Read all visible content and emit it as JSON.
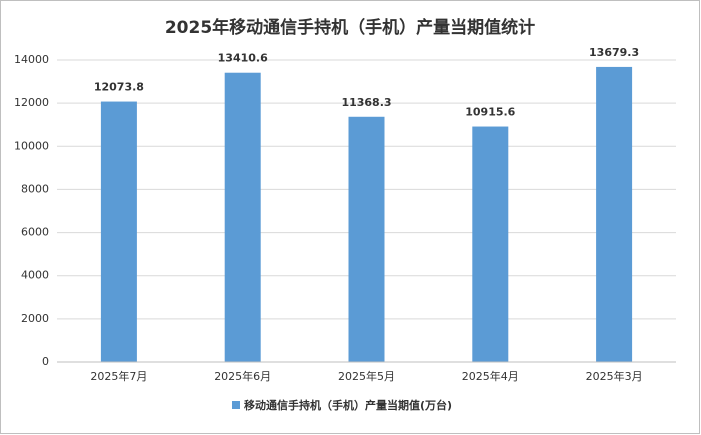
{
  "chart_data": {
    "type": "bar",
    "title": "2025年移动通信手持机（手机）产量当期值统计",
    "categories": [
      "2025年7月",
      "2025年6月",
      "2025年5月",
      "2025年4月",
      "2025年3月"
    ],
    "series": [
      {
        "name": "移动通信手持机（手机）产量当期值(万台)",
        "color": "#5b9bd5",
        "values": [
          12073.8,
          13410.6,
          11368.3,
          10915.6,
          13679.3
        ]
      }
    ],
    "ylim": [
      0,
      14000
    ],
    "yticks": [
      0,
      2000,
      4000,
      6000,
      8000,
      10000,
      12000,
      14000
    ],
    "grid": true,
    "legend": "bottom"
  }
}
